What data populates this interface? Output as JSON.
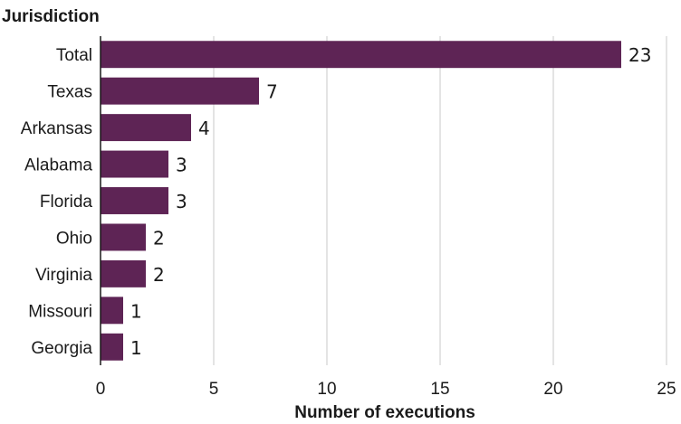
{
  "chart_data": {
    "type": "bar",
    "orientation": "horizontal",
    "ylabel": "Jurisdiction",
    "xlabel": "Number of executions",
    "categories": [
      "Total",
      "Texas",
      "Arkansas",
      "Alabama",
      "Florida",
      "Ohio",
      "Virginia",
      "Missouri",
      "Georgia"
    ],
    "values": [
      23,
      7,
      4,
      3,
      3,
      2,
      2,
      1,
      1
    ],
    "value_labels": [
      "23",
      "7",
      "4",
      "3",
      "3",
      "2",
      "2",
      "1",
      "1"
    ],
    "xlim": [
      0,
      25
    ],
    "xticks": [
      0,
      5,
      10,
      15,
      20,
      25
    ],
    "xtick_labels": [
      "0",
      "5",
      "10",
      "15",
      "20",
      "25"
    ],
    "grid": "vertical",
    "legend": "none",
    "bar_color": "#5e2455"
  }
}
